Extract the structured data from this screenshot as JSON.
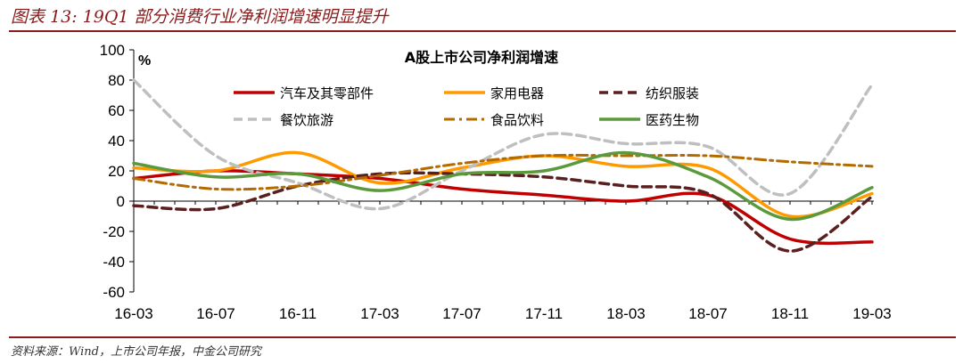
{
  "figure_title": "图表 13: 19Q1 部分消费行业净利润增速明显提升",
  "source": "资料来源：Wind，上市公司年报，中金公司研究",
  "chart_data": {
    "type": "line",
    "title": "A股上市公司净利润增速",
    "ylabel": "%",
    "ylim": [
      -60,
      100
    ],
    "yticks": [
      -60,
      -40,
      -20,
      0,
      20,
      40,
      60,
      80,
      100
    ],
    "categories": [
      "16-03",
      "16-07",
      "16-11",
      "17-03",
      "17-07",
      "17-11",
      "18-03",
      "18-07",
      "18-11",
      "19-03"
    ],
    "grid": false,
    "legend_position": "top",
    "series": [
      {
        "name": "汽车及其零部件",
        "color": "#c00000",
        "dash": "solid",
        "values": [
          15,
          20,
          18,
          15,
          8,
          4,
          0,
          4,
          -25,
          -27
        ]
      },
      {
        "name": "家用电器",
        "color": "#ff9900",
        "dash": "solid",
        "values": [
          22,
          20,
          32,
          12,
          22,
          30,
          23,
          22,
          -10,
          5
        ]
      },
      {
        "name": "纺织服装",
        "color": "#5a1f1f",
        "dash": "dash",
        "values": [
          -3,
          -5,
          10,
          18,
          18,
          16,
          10,
          5,
          -33,
          3
        ]
      },
      {
        "name": "餐饮旅游",
        "color": "#bfbfbf",
        "dash": "dash",
        "values": [
          80,
          30,
          12,
          -5,
          20,
          44,
          38,
          36,
          5,
          77
        ]
      },
      {
        "name": "食品饮料",
        "color": "#b36b00",
        "dash": "dashdot",
        "values": [
          15,
          8,
          10,
          17,
          25,
          30,
          30,
          30,
          26,
          23
        ]
      },
      {
        "name": "医药生物",
        "color": "#5b9a3c",
        "dash": "solid",
        "values": [
          25,
          16,
          18,
          7,
          18,
          20,
          32,
          16,
          -12,
          9
        ]
      }
    ]
  }
}
